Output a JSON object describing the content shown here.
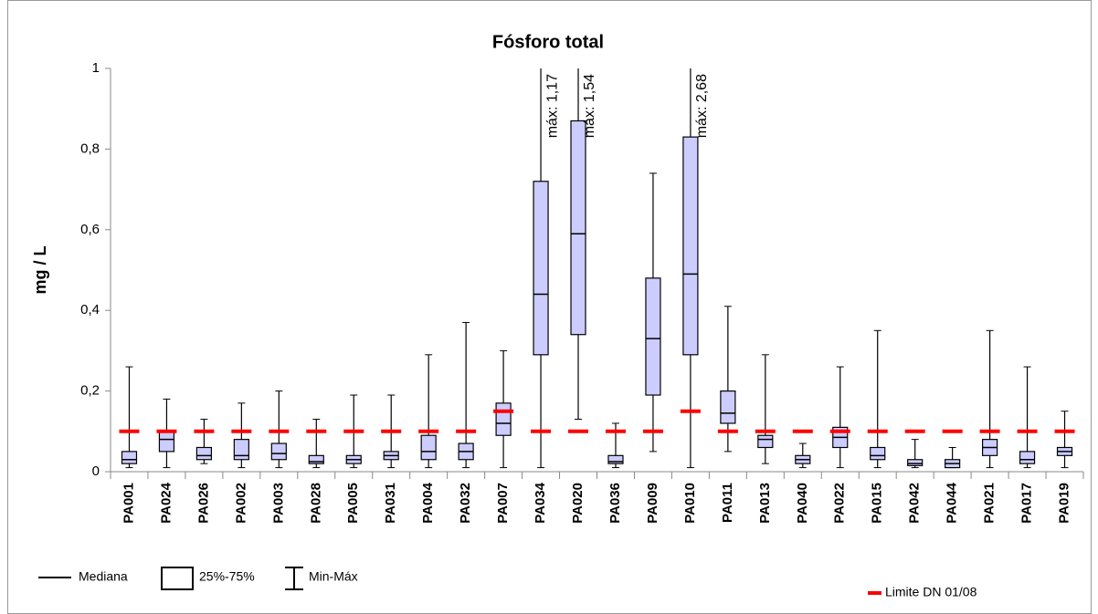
{
  "chart_data": {
    "type": "box",
    "title": "Fósforo total",
    "y_label": "mg / L",
    "categories": [
      "PA001",
      "PA024",
      "PA026",
      "PA002",
      "PA003",
      "PA028",
      "PA005",
      "PA031",
      "PA004",
      "PA032",
      "PA007",
      "PA034",
      "PA020",
      "PA036",
      "PA009",
      "PA010",
      "PA011",
      "PA013",
      "PA040",
      "PA022",
      "PA015",
      "PA042",
      "PA044",
      "PA021",
      "PA017",
      "PA019"
    ],
    "boxes": {
      "min": [
        0.01,
        0.01,
        0.02,
        0.01,
        0.01,
        0.01,
        0.01,
        0.01,
        0.01,
        0.01,
        0.01,
        0.01,
        0.13,
        0.01,
        0.05,
        0.01,
        0.05,
        0.02,
        0.01,
        0.01,
        0.01,
        0.01,
        0.01,
        0.01,
        0.01,
        0.01
      ],
      "q1": [
        0.02,
        0.05,
        0.03,
        0.03,
        0.03,
        0.02,
        0.02,
        0.03,
        0.03,
        0.03,
        0.09,
        0.29,
        0.34,
        0.02,
        0.19,
        0.29,
        0.12,
        0.06,
        0.02,
        0.06,
        0.03,
        0.015,
        0.01,
        0.04,
        0.02,
        0.04
      ],
      "median": [
        0.03,
        0.08,
        0.04,
        0.04,
        0.045,
        0.025,
        0.03,
        0.04,
        0.05,
        0.05,
        0.12,
        0.44,
        0.59,
        0.025,
        0.33,
        0.49,
        0.145,
        0.08,
        0.03,
        0.085,
        0.04,
        0.02,
        0.02,
        0.06,
        0.03,
        0.05
      ],
      "q3": [
        0.05,
        0.1,
        0.06,
        0.08,
        0.07,
        0.04,
        0.04,
        0.05,
        0.09,
        0.07,
        0.17,
        0.72,
        0.87,
        0.04,
        0.48,
        0.83,
        0.2,
        0.09,
        0.04,
        0.11,
        0.06,
        0.03,
        0.03,
        0.08,
        0.05,
        0.06
      ],
      "max": [
        0.26,
        0.18,
        0.13,
        0.17,
        0.2,
        0.13,
        0.19,
        0.19,
        0.29,
        0.37,
        0.3,
        1.17,
        1.54,
        0.12,
        0.74,
        2.68,
        0.41,
        0.29,
        0.07,
        0.26,
        0.35,
        0.08,
        0.06,
        0.35,
        0.26,
        0.15
      ],
      "fill": "#ccccff",
      "stroke": "#000000"
    },
    "max_labels": [
      null,
      null,
      null,
      null,
      null,
      null,
      null,
      null,
      null,
      null,
      null,
      "máx: 1,17",
      "máx: 1,54",
      null,
      null,
      "máx: 2,68",
      null,
      null,
      null,
      null,
      null,
      null,
      null,
      null,
      null,
      null
    ],
    "limit": {
      "name": "Limite DN 01/08",
      "color": "#ff0000",
      "values": [
        0.1,
        0.1,
        0.1,
        0.1,
        0.1,
        0.1,
        0.1,
        0.1,
        0.1,
        0.1,
        0.15,
        0.1,
        0.1,
        0.1,
        0.1,
        0.15,
        0.1,
        0.1,
        0.1,
        0.1,
        0.1,
        0.1,
        0.1,
        0.1,
        0.1,
        0.1
      ]
    },
    "legend": {
      "median": "Mediana",
      "box": "25%-75%",
      "whisker": "Min-Máx"
    },
    "ylim": [
      0,
      1
    ],
    "yticks": [
      0,
      {
        "value": 0.2,
        "label": "0,2"
      },
      {
        "value": 0.4,
        "label": "0,4"
      },
      {
        "value": 0.6,
        "label": "0,6"
      },
      {
        "value": 0.8,
        "label": "0,8"
      },
      1
    ],
    "grid": false
  }
}
